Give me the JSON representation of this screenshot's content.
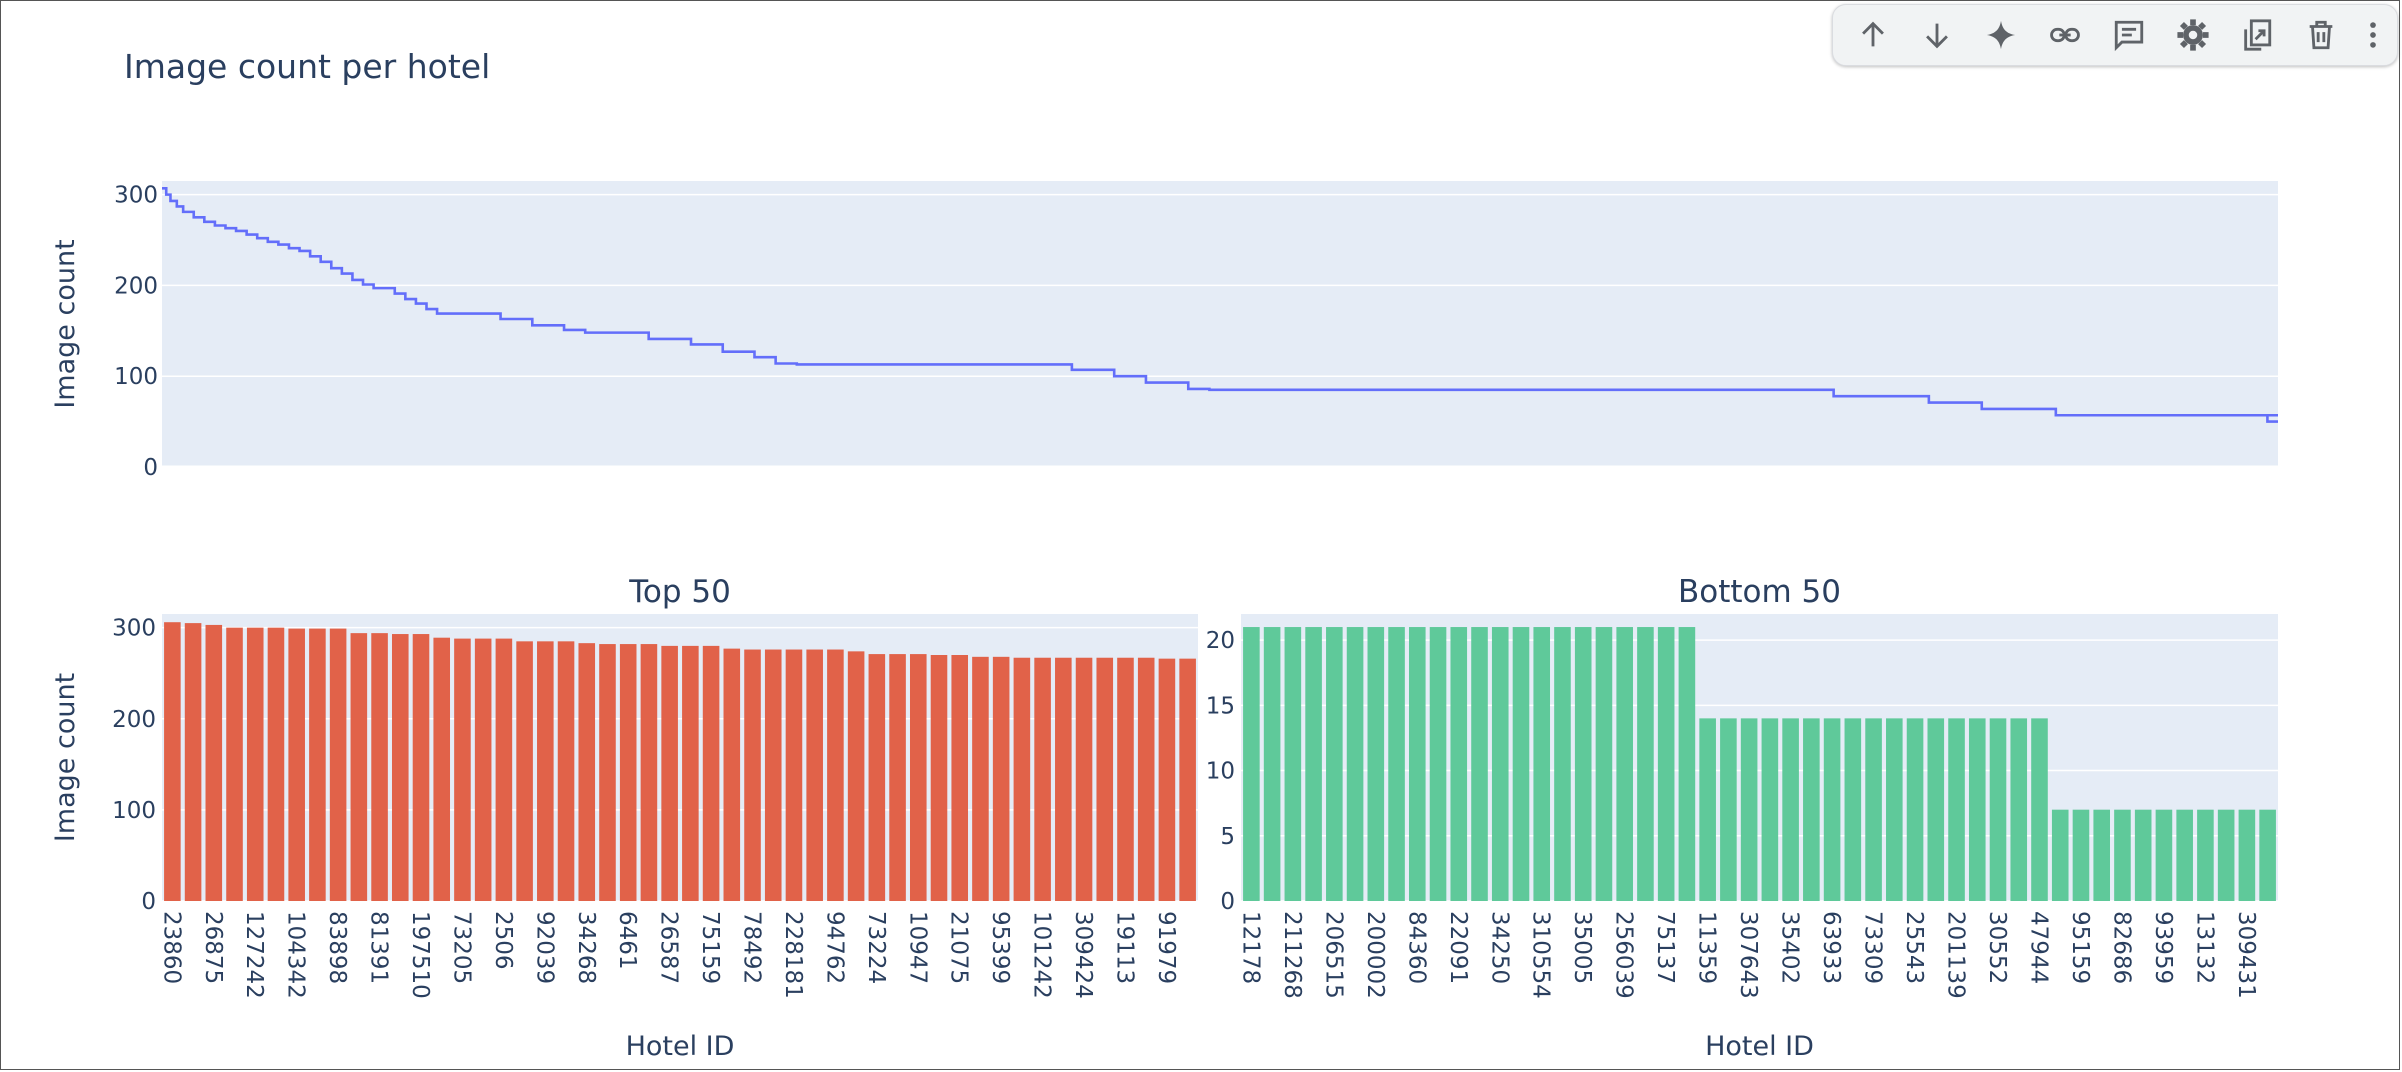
{
  "toolbar": {
    "items": [
      {
        "name": "move-up",
        "icon": "arrow-up-icon"
      },
      {
        "name": "move-down",
        "icon": "arrow-down-icon"
      },
      {
        "name": "ai-sparkle",
        "icon": "sparkle-icon"
      },
      {
        "name": "link",
        "icon": "link-icon"
      },
      {
        "name": "comment",
        "icon": "comment-icon"
      },
      {
        "name": "settings",
        "icon": "gear-icon"
      },
      {
        "name": "mirror",
        "icon": "mirror-cell-icon"
      },
      {
        "name": "delete",
        "icon": "trash-icon"
      },
      {
        "name": "more",
        "icon": "more-vert-icon"
      }
    ]
  },
  "chart_data": [
    {
      "type": "line",
      "title": "Image count per hotel",
      "xlabel": "",
      "ylabel": "Image count",
      "ylim": [
        0,
        315
      ],
      "yticks": [
        0,
        100,
        200,
        300
      ],
      "x_range": [
        0,
        1
      ],
      "x_ticks_shown": false,
      "color": "#636efa",
      "grid": true,
      "description_steps": [
        [
          0.0,
          305
        ],
        [
          0.004,
          295
        ],
        [
          0.01,
          285
        ],
        [
          0.02,
          275
        ],
        [
          0.03,
          265
        ],
        [
          0.04,
          256
        ],
        [
          0.05,
          248
        ],
        [
          0.06,
          240
        ],
        [
          0.07,
          230
        ],
        [
          0.08,
          218
        ],
        [
          0.09,
          205
        ],
        [
          0.1,
          197
        ],
        [
          0.11,
          190
        ],
        [
          0.115,
          182
        ],
        [
          0.125,
          175
        ],
        [
          0.13,
          168
        ],
        [
          0.16,
          160
        ],
        [
          0.18,
          154
        ],
        [
          0.2,
          147
        ],
        [
          0.23,
          140
        ],
        [
          0.255,
          133
        ],
        [
          0.27,
          126
        ],
        [
          0.285,
          120
        ],
        [
          0.3,
          113
        ],
        [
          0.43,
          106
        ],
        [
          0.45,
          99
        ],
        [
          0.47,
          92
        ],
        [
          0.49,
          85
        ],
        [
          0.79,
          77
        ],
        [
          0.835,
          70
        ],
        [
          0.855,
          64
        ],
        [
          0.89,
          56
        ],
        [
          1.0,
          56
        ]
      ],
      "line_points": [
        [
          0.0,
          307
        ],
        [
          0.002,
          300
        ],
        [
          0.004,
          293
        ],
        [
          0.007,
          287
        ],
        [
          0.01,
          281
        ],
        [
          0.015,
          275
        ],
        [
          0.02,
          270
        ],
        [
          0.025,
          266
        ],
        [
          0.03,
          263
        ],
        [
          0.035,
          260
        ],
        [
          0.04,
          256
        ],
        [
          0.045,
          252
        ],
        [
          0.05,
          248
        ],
        [
          0.055,
          245
        ],
        [
          0.06,
          241
        ],
        [
          0.065,
          238
        ],
        [
          0.07,
          232
        ],
        [
          0.075,
          226
        ],
        [
          0.08,
          219
        ],
        [
          0.085,
          213
        ],
        [
          0.09,
          206
        ],
        [
          0.095,
          201
        ],
        [
          0.1,
          197
        ],
        [
          0.11,
          191
        ],
        [
          0.115,
          185
        ],
        [
          0.12,
          180
        ],
        [
          0.125,
          174
        ],
        [
          0.13,
          169
        ],
        [
          0.16,
          163
        ],
        [
          0.175,
          156
        ],
        [
          0.19,
          151
        ],
        [
          0.2,
          148
        ],
        [
          0.23,
          141
        ],
        [
          0.25,
          135
        ],
        [
          0.265,
          127
        ],
        [
          0.28,
          121
        ],
        [
          0.29,
          114
        ],
        [
          0.3,
          113
        ],
        [
          0.43,
          107
        ],
        [
          0.45,
          100
        ],
        [
          0.465,
          93
        ],
        [
          0.485,
          86
        ],
        [
          0.495,
          85
        ],
        [
          0.79,
          78
        ],
        [
          0.835,
          71
        ],
        [
          0.86,
          64
        ],
        [
          0.895,
          57
        ],
        [
          1.0,
          57
        ]
      ]
    },
    {
      "type": "bar",
      "title": "Top 50",
      "xlabel": "Hotel ID",
      "ylabel": "Image count",
      "ylim": [
        0,
        315
      ],
      "yticks": [
        0,
        100,
        200,
        300
      ],
      "color": "#e16249",
      "tick_labels": [
        "23860",
        "26875",
        "127242",
        "104342",
        "83898",
        "81391",
        "197510",
        "73205",
        "2506",
        "92039",
        "34268",
        "6461",
        "26587",
        "75159",
        "78492",
        "228181",
        "94762",
        "73224",
        "10947",
        "21075",
        "95399",
        "101242",
        "309424",
        "19113",
        "91979"
      ],
      "values": [
        306,
        305,
        303,
        300,
        300,
        300,
        299,
        299,
        299,
        294,
        294,
        293,
        293,
        289,
        288,
        288,
        288,
        285,
        285,
        285,
        283,
        282,
        282,
        282,
        280,
        280,
        280,
        277,
        276,
        276,
        276,
        276,
        276,
        274,
        271,
        271,
        271,
        270,
        270,
        268,
        268,
        267,
        267,
        267,
        267,
        267,
        267,
        267,
        266,
        266
      ]
    },
    {
      "type": "bar",
      "title": "Bottom 50",
      "xlabel": "Hotel ID",
      "ylabel": "",
      "ylim": [
        0,
        22
      ],
      "yticks": [
        0,
        5,
        10,
        15,
        20
      ],
      "color": "#5fc99a",
      "tick_labels": [
        "12178",
        "211268",
        "206515",
        "200002",
        "84360",
        "22091",
        "34250",
        "310554",
        "35005",
        "256039",
        "75137",
        "11359",
        "307643",
        "35402",
        "63933",
        "73309",
        "25543",
        "201139",
        "30552",
        "47944",
        "95159",
        "82686",
        "93959",
        "13132",
        "309431"
      ],
      "values": [
        21,
        21,
        21,
        21,
        21,
        21,
        21,
        21,
        21,
        21,
        21,
        21,
        21,
        21,
        21,
        21,
        21,
        21,
        21,
        21,
        21,
        21,
        14,
        14,
        14,
        14,
        14,
        14,
        14,
        14,
        14,
        14,
        14,
        14,
        14,
        14,
        14,
        14,
        14,
        7,
        7,
        7,
        7,
        7,
        7,
        7,
        7,
        7,
        7,
        7
      ]
    }
  ]
}
